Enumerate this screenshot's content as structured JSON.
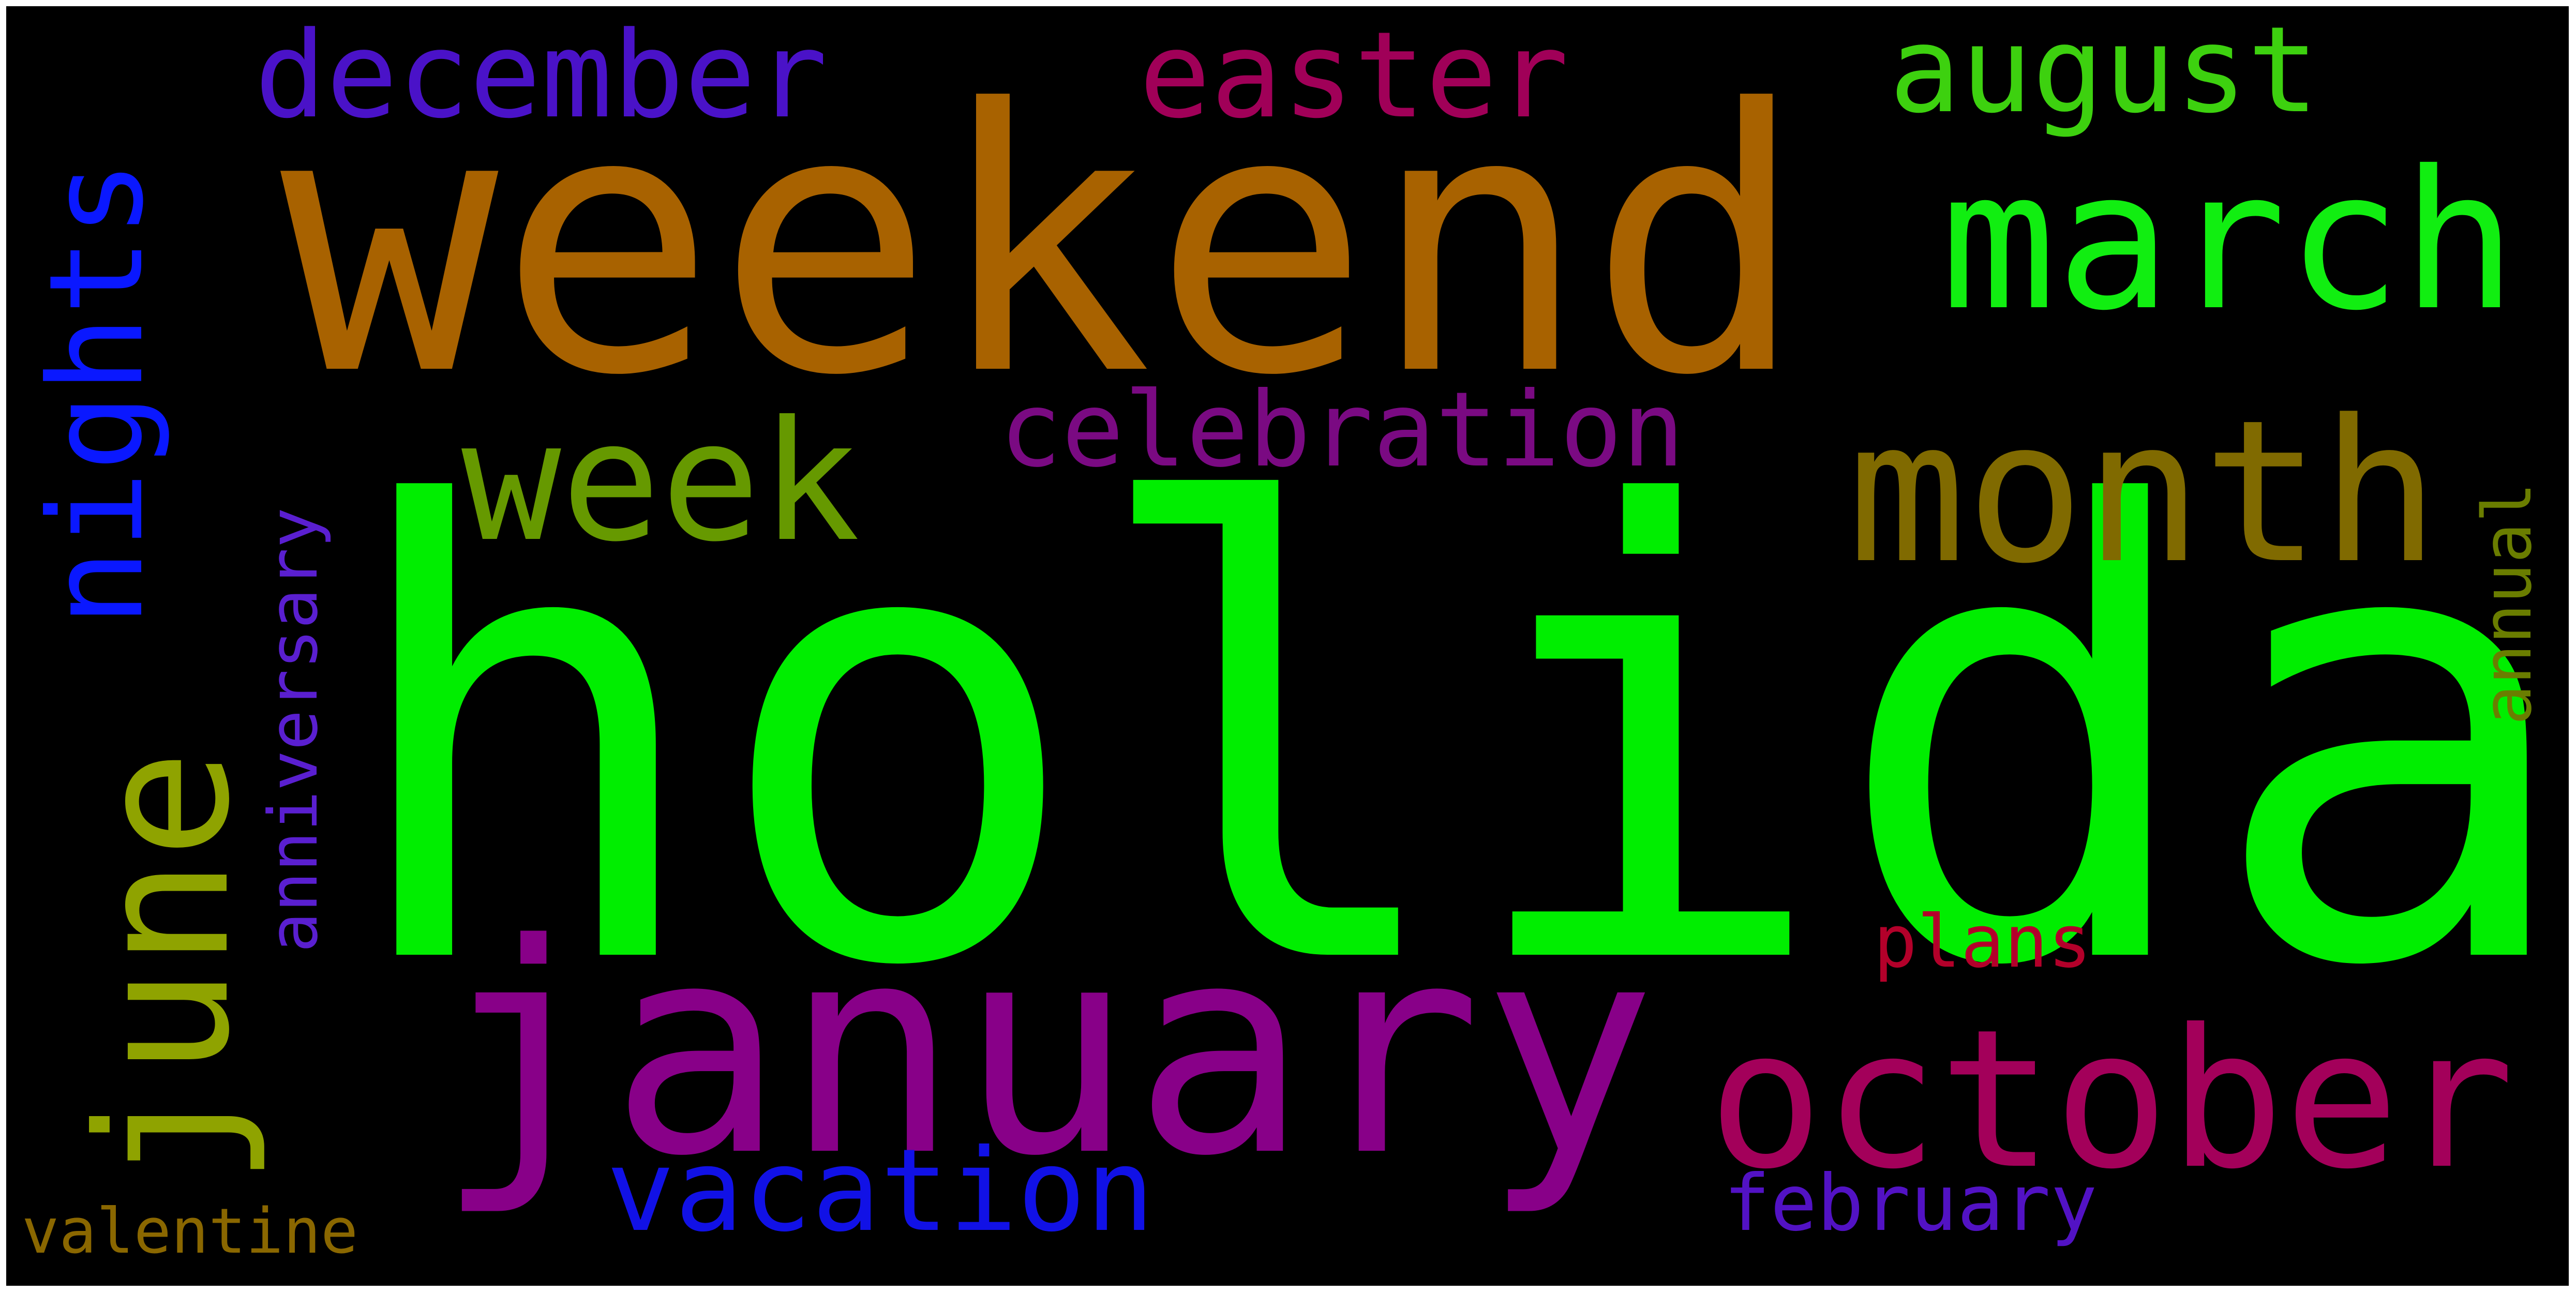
{
  "wordcloud": {
    "background": "#000000",
    "words": {
      "holiday": {
        "text": "holiday",
        "color": "#00ee00"
      },
      "weekend": {
        "text": "weekend",
        "color": "#a86200"
      },
      "january": {
        "text": "january",
        "color": "#880088"
      },
      "october": {
        "text": "october",
        "color": "#a3005a"
      },
      "march": {
        "text": "march",
        "color": "#11ee11"
      },
      "month": {
        "text": "month",
        "color": "#806a00"
      },
      "week": {
        "text": "week",
        "color": "#669900"
      },
      "june": {
        "text": "june",
        "color": "#8fa300"
      },
      "nights": {
        "text": "nights",
        "color": "#0a18ff"
      },
      "august": {
        "text": "august",
        "color": "#3dd10f"
      },
      "december": {
        "text": "december",
        "color": "#4a12c8"
      },
      "easter": {
        "text": "easter",
        "color": "#a00058"
      },
      "celebration": {
        "text": "celebration",
        "color": "#7a0a82"
      },
      "vacation": {
        "text": "vacation",
        "color": "#1111e6"
      },
      "anniversary": {
        "text": "anniversary",
        "color": "#5a1fd0"
      },
      "annual": {
        "text": "annual",
        "color": "#6a7d00"
      },
      "plans": {
        "text": "plans",
        "color": "#b3002a"
      },
      "february": {
        "text": "february",
        "color": "#5212c4"
      },
      "valentine": {
        "text": "valentine",
        "color": "#8a6700"
      }
    }
  }
}
